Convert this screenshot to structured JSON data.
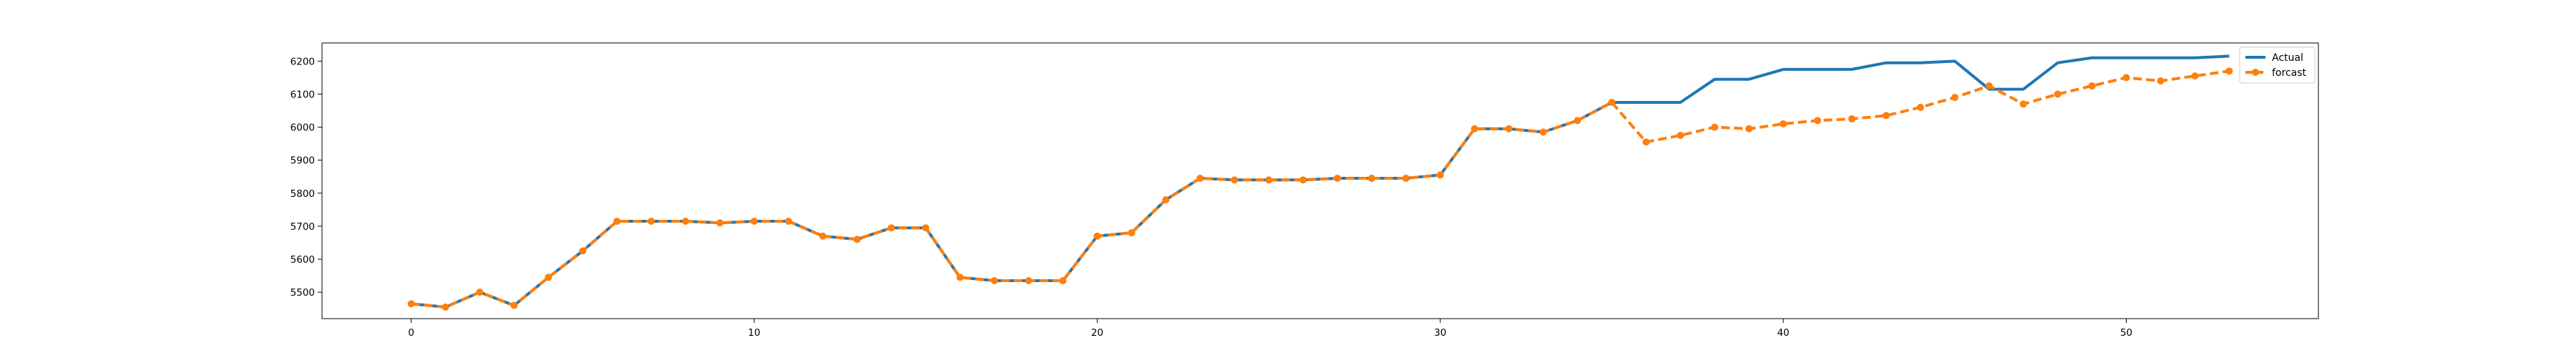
{
  "chart_data": {
    "type": "line",
    "title": "",
    "xlabel": "",
    "ylabel": "",
    "xlim": [
      -2.6,
      55.6
    ],
    "ylim": [
      5420,
      6255
    ],
    "xticks": [
      0,
      10,
      20,
      30,
      40,
      50
    ],
    "yticks": [
      5500,
      5600,
      5700,
      5800,
      5900,
      6000,
      6100,
      6200
    ],
    "grid": false,
    "legend": "top-right",
    "colors": {
      "actual": "#1f77b4",
      "forcast": "#ff7f0e"
    },
    "series": [
      {
        "name": "Actual",
        "style": "solid",
        "x": [
          0,
          1,
          2,
          3,
          4,
          5,
          6,
          7,
          8,
          9,
          10,
          11,
          12,
          13,
          14,
          15,
          16,
          17,
          18,
          19,
          20,
          21,
          22,
          23,
          24,
          25,
          26,
          27,
          28,
          29,
          30,
          31,
          32,
          33,
          34,
          35,
          36,
          37,
          38,
          39,
          40,
          41,
          42,
          43,
          44,
          45,
          46,
          47,
          48,
          49,
          50,
          51,
          52,
          53
        ],
        "values": [
          5465,
          5455,
          5500,
          5460,
          5545,
          5625,
          5715,
          5715,
          5715,
          5710,
          5715,
          5715,
          5670,
          5660,
          5695,
          5695,
          5545,
          5535,
          5535,
          5535,
          5670,
          5680,
          5780,
          5845,
          5840,
          5840,
          5840,
          5845,
          5845,
          5845,
          5855,
          5995,
          5995,
          5985,
          6020,
          6075,
          6075,
          6075,
          6145,
          6145,
          6175,
          6175,
          6175,
          6195,
          6195,
          6200,
          6115,
          6115,
          6195,
          6210,
          6210,
          6210,
          6210,
          6215
        ]
      },
      {
        "name": "forcast",
        "style": "dashed",
        "marker": "circle",
        "x": [
          0,
          1,
          2,
          3,
          4,
          5,
          6,
          7,
          8,
          9,
          10,
          11,
          12,
          13,
          14,
          15,
          16,
          17,
          18,
          19,
          20,
          21,
          22,
          23,
          24,
          25,
          26,
          27,
          28,
          29,
          30,
          31,
          32,
          33,
          34,
          35,
          36,
          37,
          38,
          39,
          40,
          41,
          42,
          43,
          44,
          45,
          46,
          47,
          48,
          49,
          50,
          51,
          52,
          53
        ],
        "values": [
          5465,
          5455,
          5500,
          5460,
          5545,
          5625,
          5715,
          5715,
          5715,
          5710,
          5715,
          5715,
          5670,
          5660,
          5695,
          5695,
          5545,
          5535,
          5535,
          5535,
          5670,
          5680,
          5780,
          5845,
          5840,
          5840,
          5840,
          5845,
          5845,
          5845,
          5855,
          5995,
          5995,
          5985,
          6020,
          6075,
          5955,
          5975,
          6000,
          5995,
          6010,
          6020,
          6025,
          6035,
          6060,
          6090,
          6125,
          6070,
          6100,
          6125,
          6150,
          6140,
          6155,
          6170
        ]
      }
    ]
  }
}
